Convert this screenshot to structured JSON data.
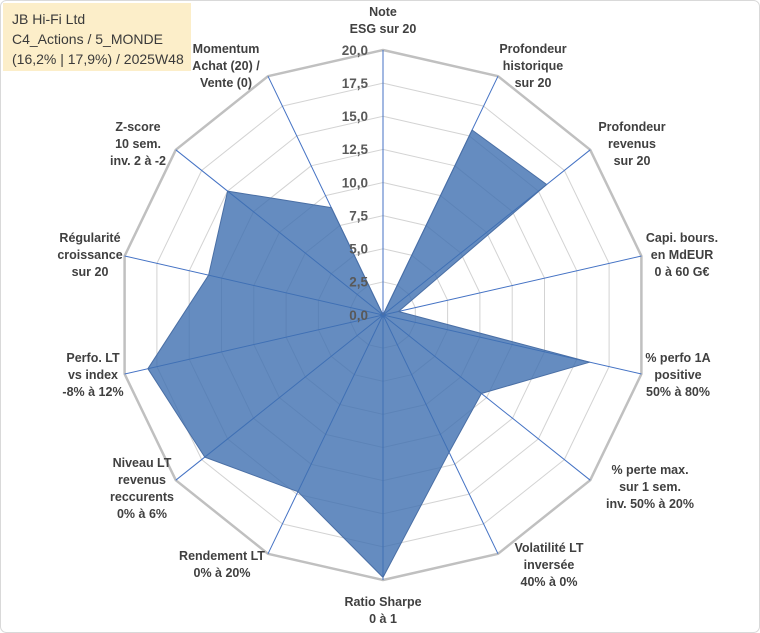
{
  "title_box": {
    "company": "JB Hi-Fi Ltd",
    "category": "C4_Actions / 5_MONDE",
    "stats": "(16,2% | 17,9%) / 2025W48"
  },
  "colors": {
    "title_box_bg": "#FCEEC9",
    "frame_border": "#D9D9D9",
    "series_fill": "#3F6FB0",
    "series_stroke": "#4A6FA5",
    "spoke": "#4472C4",
    "grid": "#D3D3D3",
    "outer_ring": "#C0C0C0",
    "label_text": "#404040",
    "tick_text": "#595959"
  },
  "chart_data": {
    "type": "radar",
    "categories": [
      [
        "Note",
        "ESG sur 20"
      ],
      [
        "Profondeur",
        "historique",
        "sur 20"
      ],
      [
        "Profondeur",
        "revenus",
        "sur 20"
      ],
      [
        "Capi. bours.",
        "en MdEUR",
        "0 à 60 G€"
      ],
      [
        "% perfo 1A",
        "positive",
        "50% à 80%"
      ],
      [
        "% perte max.",
        "sur 1 sem.",
        "inv. 50% à 20%"
      ],
      [
        "Volatilité LT",
        "inversée",
        "40% à 0%"
      ],
      [
        "Ratio Sharpe",
        "0 à 1"
      ],
      [
        "Rendement LT",
        "0% à 20%"
      ],
      [
        "Niveau LT",
        "revenus",
        "reccurents",
        "0% à 6%"
      ],
      [
        "Perfo. LT",
        "vs index",
        "-8% à 12%"
      ],
      [
        "Régularité",
        "croissance",
        "sur 20"
      ],
      [
        "Z-score",
        "10 sem.",
        "inv. 2 à -2"
      ],
      [
        "Momentum",
        "Achat (20) /",
        "Vente (0)"
      ]
    ],
    "series": [
      {
        "values": [
          0,
          15.5,
          15.8,
          1.2,
          16,
          9.5,
          11.5,
          19.8,
          14.8,
          17.2,
          18.2,
          13.5,
          15,
          9
        ]
      }
    ],
    "rlim": [
      0,
      20
    ],
    "r_ticks": [
      0,
      2.5,
      5,
      7.5,
      10,
      12.5,
      15,
      17.5,
      20
    ],
    "r_tick_labels": [
      "0,0",
      "2,5",
      "5,0",
      "7,5",
      "10,0",
      "12,5",
      "15,0",
      "17,5",
      "20,0"
    ],
    "grid": true
  }
}
